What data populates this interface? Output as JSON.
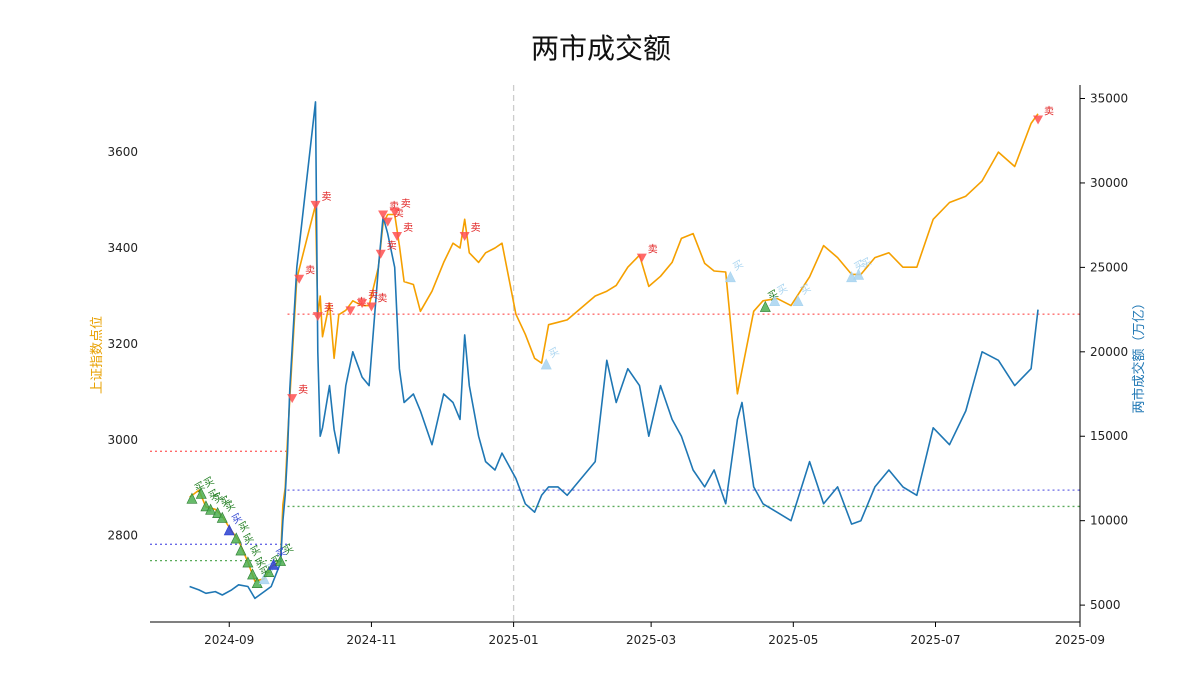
{
  "chart_data": {
    "type": "line",
    "title": "两市成交额",
    "ylabel_left": "上证指数点位",
    "ylabel_right": "两市成交额（万亿）",
    "xlim": [
      "2024-07-29",
      "2025-09-01"
    ],
    "ylim_left": [
      2620,
      3740
    ],
    "ylim_right": [
      4000,
      35800
    ],
    "x_ticks": [
      "2024-09",
      "2024-11",
      "2025-01",
      "2025-03",
      "2025-05",
      "2025-07",
      "2025-09"
    ],
    "y_ticks_left": [
      2800,
      3000,
      3200,
      3400,
      3600
    ],
    "y_ticks_right": [
      5000,
      10000,
      15000,
      20000,
      25000,
      30000,
      35000
    ],
    "colors": {
      "index": "#f5a000",
      "turnover": "#1f77b4",
      "sell": "#ff5050",
      "buy": "#4caf50",
      "buy_light": "#a8d4f0",
      "buy_blue": "#2a3fd0",
      "vline": "#cccccc",
      "hline_red": "#ff6b6b",
      "hline_blue": "#6a6ae6",
      "hline_green": "#5aaa5a"
    },
    "vline_x": "2025-01-01",
    "hlines": [
      {
        "axis": "left",
        "y": 2976,
        "from": "2024-07-29",
        "to": "2024-09-26",
        "color": "hline_red"
      },
      {
        "axis": "left",
        "y": 2782,
        "from": "2024-07-29",
        "to": "2024-09-26",
        "color": "hline_blue"
      },
      {
        "axis": "left",
        "y": 2748,
        "from": "2024-07-29",
        "to": "2024-09-26",
        "color": "hline_green"
      },
      {
        "axis": "left",
        "y": 3262,
        "from": "2024-09-26",
        "to": "2025-09-01",
        "color": "hline_red"
      },
      {
        "axis": "left",
        "y": 2895,
        "from": "2024-09-26",
        "to": "2025-09-01",
        "color": "hline_blue"
      },
      {
        "axis": "left",
        "y": 2861,
        "from": "2024-09-26",
        "to": "2025-09-01",
        "color": "hline_green"
      }
    ],
    "series": [
      {
        "key": "index",
        "axis": "left",
        "x": [
          "2024-08-15",
          "2024-08-19",
          "2024-08-22",
          "2024-08-26",
          "2024-08-29",
          "2024-09-02",
          "2024-09-05",
          "2024-09-09",
          "2024-09-12",
          "2024-09-16",
          "2024-09-19",
          "2024-09-23",
          "2024-09-24",
          "2024-09-25",
          "2024-09-26",
          "2024-09-27",
          "2024-09-30",
          "2024-10-08",
          "2024-10-09",
          "2024-10-10",
          "2024-10-11",
          "2024-10-14",
          "2024-10-16",
          "2024-10-18",
          "2024-10-21",
          "2024-10-24",
          "2024-10-28",
          "2024-10-31",
          "2024-11-04",
          "2024-11-06",
          "2024-11-08",
          "2024-11-11",
          "2024-11-13",
          "2024-11-15",
          "2024-11-19",
          "2024-11-22",
          "2024-11-27",
          "2024-12-02",
          "2024-12-06",
          "2024-12-09",
          "2024-12-11",
          "2024-12-13",
          "2024-12-17",
          "2024-12-20",
          "2024-12-24",
          "2024-12-27",
          "2025-01-02",
          "2025-01-06",
          "2025-01-10",
          "2025-01-13",
          "2025-01-16",
          "2025-01-20",
          "2025-01-24",
          "2025-02-05",
          "2025-02-10",
          "2025-02-14",
          "2025-02-19",
          "2025-02-24",
          "2025-02-28",
          "2025-03-05",
          "2025-03-10",
          "2025-03-14",
          "2025-03-19",
          "2025-03-24",
          "2025-03-28",
          "2025-04-02",
          "2025-04-07",
          "2025-04-09",
          "2025-04-14",
          "2025-04-18",
          "2025-04-24",
          "2025-04-30",
          "2025-05-08",
          "2025-05-14",
          "2025-05-20",
          "2025-05-26",
          "2025-05-30",
          "2025-06-05",
          "2025-06-11",
          "2025-06-17",
          "2025-06-23",
          "2025-06-30",
          "2025-07-07",
          "2025-07-14",
          "2025-07-21",
          "2025-07-28",
          "2025-08-04",
          "2025-08-11",
          "2025-08-14"
        ],
        "values": [
          2880,
          2895,
          2860,
          2855,
          2840,
          2810,
          2790,
          2745,
          2705,
          2710,
          2735,
          2748,
          2865,
          2900,
          3000,
          3087,
          3336,
          3490,
          3258,
          3300,
          3215,
          3285,
          3170,
          3261,
          3270,
          3290,
          3280,
          3280,
          3360,
          3452,
          3470,
          3470,
          3405,
          3330,
          3324,
          3268,
          3310,
          3370,
          3410,
          3400,
          3460,
          3390,
          3370,
          3390,
          3400,
          3410,
          3262,
          3220,
          3170,
          3160,
          3240,
          3245,
          3250,
          3300,
          3310,
          3322,
          3360,
          3385,
          3320,
          3341,
          3370,
          3420,
          3430,
          3368,
          3352,
          3350,
          3096,
          3145,
          3268,
          3290,
          3295,
          3280,
          3340,
          3405,
          3380,
          3345,
          3345,
          3380,
          3390,
          3360,
          3360,
          3460,
          3495,
          3508,
          3540,
          3600,
          3570,
          3660,
          3680
        ]
      },
      {
        "key": "turnover",
        "axis": "right",
        "x": [
          "2024-08-15",
          "2024-08-19",
          "2024-08-22",
          "2024-08-26",
          "2024-08-29",
          "2024-09-02",
          "2024-09-05",
          "2024-09-09",
          "2024-09-12",
          "2024-09-16",
          "2024-09-19",
          "2024-09-23",
          "2024-09-24",
          "2024-09-25",
          "2024-09-26",
          "2024-09-27",
          "2024-09-30",
          "2024-10-08",
          "2024-10-09",
          "2024-10-10",
          "2024-10-11",
          "2024-10-14",
          "2024-10-16",
          "2024-10-18",
          "2024-10-21",
          "2024-10-24",
          "2024-10-28",
          "2024-10-31",
          "2024-11-04",
          "2024-11-06",
          "2024-11-08",
          "2024-11-11",
          "2024-11-13",
          "2024-11-15",
          "2024-11-19",
          "2024-11-22",
          "2024-11-27",
          "2024-12-02",
          "2024-12-06",
          "2024-12-09",
          "2024-12-11",
          "2024-12-13",
          "2024-12-17",
          "2024-12-20",
          "2024-12-24",
          "2024-12-27",
          "2025-01-02",
          "2025-01-06",
          "2025-01-10",
          "2025-01-13",
          "2025-01-16",
          "2025-01-20",
          "2025-01-24",
          "2025-02-05",
          "2025-02-10",
          "2025-02-14",
          "2025-02-19",
          "2025-02-24",
          "2025-02-28",
          "2025-03-05",
          "2025-03-10",
          "2025-03-14",
          "2025-03-19",
          "2025-03-24",
          "2025-03-28",
          "2025-04-02",
          "2025-04-07",
          "2025-04-09",
          "2025-04-14",
          "2025-04-18",
          "2025-04-24",
          "2025-04-30",
          "2025-05-08",
          "2025-05-14",
          "2025-05-20",
          "2025-05-26",
          "2025-05-30",
          "2025-06-05",
          "2025-06-11",
          "2025-06-17",
          "2025-06-23",
          "2025-06-30",
          "2025-07-07",
          "2025-07-14",
          "2025-07-21",
          "2025-07-28",
          "2025-08-04",
          "2025-08-11",
          "2025-08-14"
        ],
        "values": [
          6100,
          5900,
          5700,
          5800,
          5600,
          5900,
          6200,
          6100,
          5400,
          5800,
          6100,
          7500,
          10000,
          11500,
          14000,
          17800,
          25000,
          34800,
          20000,
          15000,
          15500,
          18000,
          15400,
          14000,
          18000,
          20000,
          18500,
          18000,
          25000,
          28000,
          27000,
          25000,
          19000,
          17000,
          17500,
          16500,
          14500,
          17500,
          17000,
          16000,
          21000,
          18000,
          15000,
          13500,
          13000,
          14000,
          12500,
          11000,
          10500,
          11500,
          12000,
          12000,
          11500,
          13500,
          19500,
          17000,
          19000,
          18000,
          15000,
          18000,
          16000,
          15000,
          13000,
          12000,
          13000,
          11000,
          16000,
          17000,
          12000,
          11000,
          10500,
          10000,
          13500,
          11000,
          12000,
          9800,
          10000,
          12000,
          13000,
          12000,
          11500,
          15500,
          14500,
          16500,
          20000,
          19500,
          18000,
          19000,
          22500
        ]
      }
    ],
    "sell_signals": [
      {
        "x": "2024-09-28",
        "y": 3087,
        "label": "卖"
      },
      {
        "x": "2024-10-01",
        "y": 3336,
        "label": "卖"
      },
      {
        "x": "2024-10-08",
        "y": 3490,
        "label": "卖"
      },
      {
        "x": "2024-10-09",
        "y": 3258,
        "label": "卖"
      },
      {
        "x": "2024-10-23",
        "y": 3270,
        "label": "卖"
      },
      {
        "x": "2024-10-28",
        "y": 3285,
        "label": "卖"
      },
      {
        "x": "2024-11-01",
        "y": 3278,
        "label": "卖"
      },
      {
        "x": "2024-11-05",
        "y": 3388,
        "label": "卖"
      },
      {
        "x": "2024-11-06",
        "y": 3470,
        "label": "卖"
      },
      {
        "x": "2024-11-08",
        "y": 3455,
        "label": "卖"
      },
      {
        "x": "2024-11-11",
        "y": 3475,
        "label": "卖"
      },
      {
        "x": "2024-11-12",
        "y": 3425,
        "label": "卖"
      },
      {
        "x": "2024-12-11",
        "y": 3425,
        "label": "卖"
      },
      {
        "x": "2025-02-25",
        "y": 3380,
        "label": "卖"
      },
      {
        "x": "2025-08-14",
        "y": 3668,
        "label": "卖"
      }
    ],
    "buy_signals": [
      {
        "x": "2024-08-16",
        "y": 2878,
        "label": "买",
        "color": "buy"
      },
      {
        "x": "2024-08-20",
        "y": 2888,
        "label": "买",
        "color": "buy"
      },
      {
        "x": "2024-08-22",
        "y": 2862,
        "label": "买",
        "color": "buy"
      },
      {
        "x": "2024-08-24",
        "y": 2855,
        "label": "买",
        "color": "buy"
      },
      {
        "x": "2024-08-27",
        "y": 2848,
        "label": "买",
        "color": "buy"
      },
      {
        "x": "2024-08-29",
        "y": 2838,
        "label": "买",
        "color": "buy"
      },
      {
        "x": "2024-09-01",
        "y": 2812,
        "label": "买",
        "color": "buy_blue"
      },
      {
        "x": "2024-09-04",
        "y": 2795,
        "label": "买",
        "color": "buy"
      },
      {
        "x": "2024-09-06",
        "y": 2770,
        "label": "买",
        "color": "buy"
      },
      {
        "x": "2024-09-09",
        "y": 2745,
        "label": "买",
        "color": "buy"
      },
      {
        "x": "2024-09-11",
        "y": 2720,
        "label": "买",
        "color": "buy"
      },
      {
        "x": "2024-09-13",
        "y": 2702,
        "label": "买",
        "color": "buy"
      },
      {
        "x": "2024-09-16",
        "y": 2710,
        "label": "买",
        "color": "buy_light"
      },
      {
        "x": "2024-09-18",
        "y": 2725,
        "label": "买",
        "color": "buy"
      },
      {
        "x": "2024-09-20",
        "y": 2740,
        "label": "买",
        "color": "buy_blue"
      },
      {
        "x": "2024-09-23",
        "y": 2748,
        "label": "买",
        "color": "buy"
      },
      {
        "x": "2025-01-15",
        "y": 3158,
        "label": "买",
        "color": "buy_light"
      },
      {
        "x": "2025-04-04",
        "y": 3340,
        "label": "买",
        "color": "buy_light"
      },
      {
        "x": "2025-04-19",
        "y": 3278,
        "label": "买",
        "color": "buy"
      },
      {
        "x": "2025-04-23",
        "y": 3290,
        "label": "买",
        "color": "buy_light"
      },
      {
        "x": "2025-05-03",
        "y": 3290,
        "label": "买",
        "color": "buy_light"
      },
      {
        "x": "2025-05-26",
        "y": 3340,
        "label": "买",
        "color": "buy_light"
      },
      {
        "x": "2025-05-29",
        "y": 3345,
        "label": "买",
        "color": "buy_light"
      }
    ]
  }
}
